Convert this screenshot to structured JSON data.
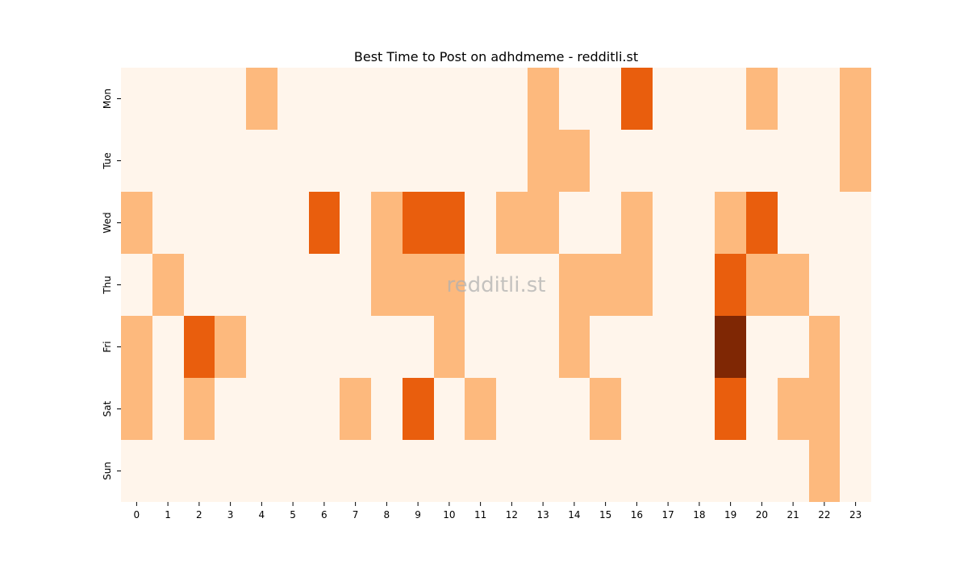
{
  "chart_data": {
    "type": "heatmap",
    "title": "Best Time to Post on adhdmeme - redditli.st",
    "watermark": "redditli.st",
    "xlabel": "",
    "ylabel": "",
    "x_categories": [
      "0",
      "1",
      "2",
      "3",
      "4",
      "5",
      "6",
      "7",
      "8",
      "9",
      "10",
      "11",
      "12",
      "13",
      "14",
      "15",
      "16",
      "17",
      "18",
      "19",
      "20",
      "21",
      "22",
      "23"
    ],
    "y_categories": [
      "Mon",
      "Tue",
      "Wed",
      "Thu",
      "Fri",
      "Sat",
      "Sun"
    ],
    "colorbar": false,
    "colormap": "Oranges",
    "level_colors": [
      "#fff5eb",
      "#fdb97d",
      "#e95e0d",
      "#7f2704"
    ],
    "values": [
      [
        0,
        0,
        0,
        0,
        1,
        0,
        0,
        0,
        0,
        0,
        0,
        0,
        0,
        1,
        0,
        0,
        2,
        0,
        0,
        0,
        1,
        0,
        0,
        1
      ],
      [
        0,
        0,
        0,
        0,
        0,
        0,
        0,
        0,
        0,
        0,
        0,
        0,
        0,
        1,
        1,
        0,
        0,
        0,
        0,
        0,
        0,
        0,
        0,
        1
      ],
      [
        1,
        0,
        0,
        0,
        0,
        0,
        2,
        0,
        1,
        2,
        2,
        0,
        1,
        1,
        0,
        0,
        1,
        0,
        0,
        1,
        2,
        0,
        0,
        0
      ],
      [
        0,
        1,
        0,
        0,
        0,
        0,
        0,
        0,
        1,
        1,
        1,
        0,
        0,
        0,
        1,
        1,
        1,
        0,
        0,
        2,
        1,
        1,
        0,
        0
      ],
      [
        1,
        0,
        2,
        1,
        0,
        0,
        0,
        0,
        0,
        0,
        1,
        0,
        0,
        0,
        1,
        0,
        0,
        0,
        0,
        3,
        0,
        0,
        1,
        0
      ],
      [
        1,
        0,
        1,
        0,
        0,
        0,
        0,
        1,
        0,
        2,
        0,
        1,
        0,
        0,
        0,
        1,
        0,
        0,
        0,
        2,
        0,
        1,
        1,
        0
      ],
      [
        0,
        0,
        0,
        0,
        0,
        0,
        0,
        0,
        0,
        0,
        0,
        0,
        0,
        0,
        0,
        0,
        0,
        0,
        0,
        0,
        0,
        0,
        1,
        0
      ]
    ]
  }
}
